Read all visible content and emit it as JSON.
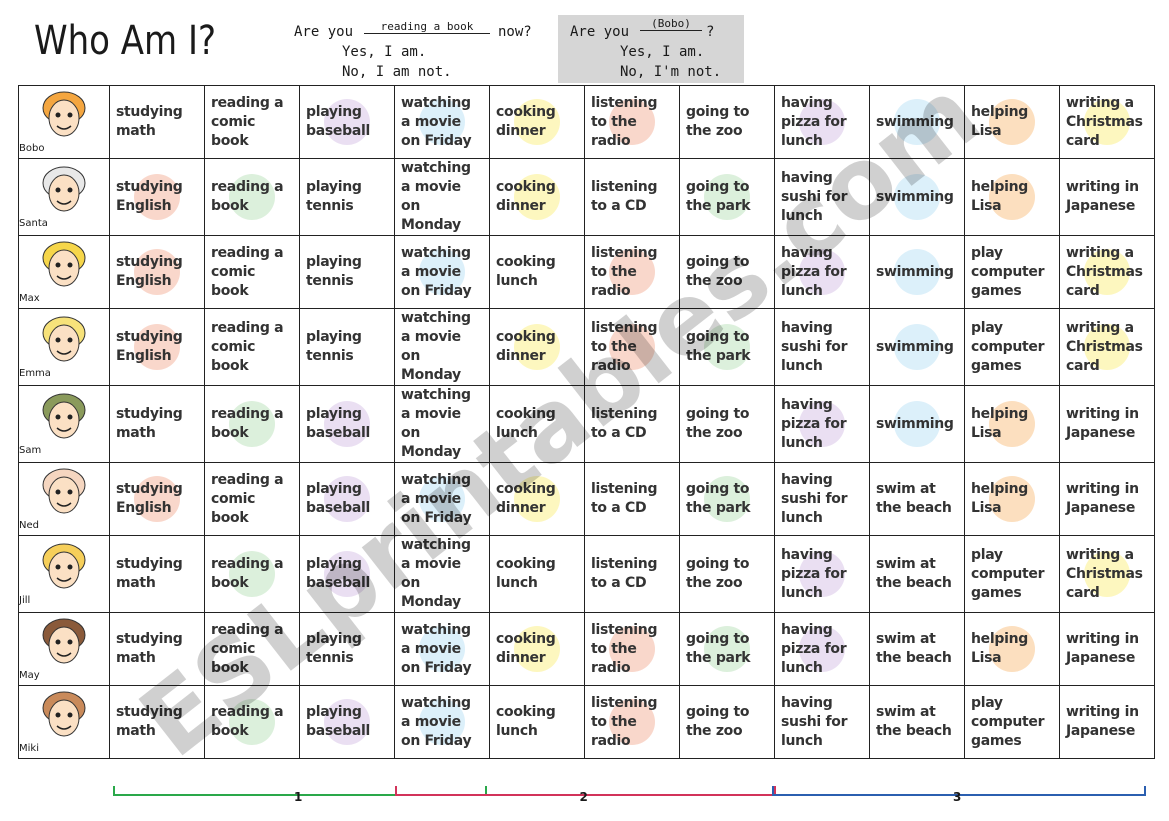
{
  "title": "Who Am I?",
  "example1": {
    "q_prefix": "Are you",
    "q_blank": "reading a book",
    "q_suffix": "now?",
    "yes": "Yes, I am.",
    "no": "No, I am not."
  },
  "example2": {
    "q_prefix": "Are you",
    "q_blank": "(Bobo)",
    "q_suffix": "?",
    "yes": "Yes, I am.",
    "no": "No, I'm not."
  },
  "colors": {
    "red": "#f4b6a0",
    "green": "#bfe3bf",
    "purple": "#d8c4e8",
    "blue": "#bfe3f5",
    "yellow": "#fbf18a",
    "orange": "#f9c48a"
  },
  "rows": [
    {
      "name": "Bobo",
      "cells": [
        {
          "t": "studying math",
          "c": ""
        },
        {
          "t": "reading a comic book",
          "c": ""
        },
        {
          "t": "playing baseball",
          "c": "purple"
        },
        {
          "t": "watching a movie on Friday",
          "c": "blue"
        },
        {
          "t": "cooking dinner",
          "c": "yellow"
        },
        {
          "t": "listening to the radio",
          "c": "red"
        },
        {
          "t": "going to the zoo",
          "c": ""
        },
        {
          "t": "having pizza for lunch",
          "c": "purple"
        },
        {
          "t": "swimming",
          "c": "blue"
        },
        {
          "t": "helping Lisa",
          "c": "orange"
        },
        {
          "t": "writing a Christmas card",
          "c": "yellow"
        }
      ]
    },
    {
      "name": "Santa",
      "cells": [
        {
          "t": "studying English",
          "c": "red"
        },
        {
          "t": "reading a book",
          "c": "green"
        },
        {
          "t": "playing tennis",
          "c": ""
        },
        {
          "t": "watching a movie on Monday",
          "c": ""
        },
        {
          "t": "cooking dinner",
          "c": "yellow"
        },
        {
          "t": "listening to a CD",
          "c": ""
        },
        {
          "t": "going to the park",
          "c": "green"
        },
        {
          "t": "having sushi for lunch",
          "c": ""
        },
        {
          "t": "swimming",
          "c": "blue"
        },
        {
          "t": "helping Lisa",
          "c": "orange"
        },
        {
          "t": "writing in Japanese",
          "c": ""
        }
      ]
    },
    {
      "name": "Max",
      "cells": [
        {
          "t": "studying English",
          "c": "red"
        },
        {
          "t": "reading a comic book",
          "c": ""
        },
        {
          "t": "playing tennis",
          "c": ""
        },
        {
          "t": "watching a movie on Friday",
          "c": "blue"
        },
        {
          "t": "cooking lunch",
          "c": ""
        },
        {
          "t": "listening to the radio",
          "c": "red"
        },
        {
          "t": "going to the zoo",
          "c": ""
        },
        {
          "t": "having pizza for lunch",
          "c": "purple"
        },
        {
          "t": "swimming",
          "c": "blue"
        },
        {
          "t": "play computer games",
          "c": ""
        },
        {
          "t": "writing a Christmas card",
          "c": "yellow"
        }
      ]
    },
    {
      "name": "Emma",
      "cells": [
        {
          "t": "studying English",
          "c": "red"
        },
        {
          "t": "reading a comic book",
          "c": ""
        },
        {
          "t": "playing tennis",
          "c": ""
        },
        {
          "t": "watching a movie on Monday",
          "c": ""
        },
        {
          "t": "cooking dinner",
          "c": "yellow"
        },
        {
          "t": "listening to the radio",
          "c": "red"
        },
        {
          "t": "going to the park",
          "c": "green"
        },
        {
          "t": "having sushi for lunch",
          "c": ""
        },
        {
          "t": "swimming",
          "c": "blue"
        },
        {
          "t": "play computer games",
          "c": ""
        },
        {
          "t": "writing a Christmas card",
          "c": "yellow"
        }
      ]
    },
    {
      "name": "Sam",
      "cells": [
        {
          "t": "studying math",
          "c": ""
        },
        {
          "t": "reading a book",
          "c": "green"
        },
        {
          "t": "playing baseball",
          "c": "purple"
        },
        {
          "t": "watching a movie on Monday",
          "c": ""
        },
        {
          "t": "cooking lunch",
          "c": ""
        },
        {
          "t": "listening to a CD",
          "c": ""
        },
        {
          "t": "going to the zoo",
          "c": ""
        },
        {
          "t": "having pizza for lunch",
          "c": "purple"
        },
        {
          "t": "swimming",
          "c": "blue"
        },
        {
          "t": "helping Lisa",
          "c": "orange"
        },
        {
          "t": "writing in Japanese",
          "c": ""
        }
      ]
    },
    {
      "name": "Ned",
      "cells": [
        {
          "t": "studying English",
          "c": "red"
        },
        {
          "t": "reading a comic book",
          "c": ""
        },
        {
          "t": "playing baseball",
          "c": "purple"
        },
        {
          "t": "watching a movie on Friday",
          "c": "blue"
        },
        {
          "t": "cooking dinner",
          "c": "yellow"
        },
        {
          "t": "listening to a CD",
          "c": ""
        },
        {
          "t": "going to the park",
          "c": "green"
        },
        {
          "t": "having sushi for lunch",
          "c": ""
        },
        {
          "t": "swim at the beach",
          "c": ""
        },
        {
          "t": "helping Lisa",
          "c": "orange"
        },
        {
          "t": "writing in Japanese",
          "c": ""
        }
      ]
    },
    {
      "name": "Jill",
      "cells": [
        {
          "t": "studying math",
          "c": ""
        },
        {
          "t": "reading a book",
          "c": "green"
        },
        {
          "t": "playing baseball",
          "c": "purple"
        },
        {
          "t": "watching a movie on Monday",
          "c": ""
        },
        {
          "t": "cooking lunch",
          "c": ""
        },
        {
          "t": "listening to a CD",
          "c": ""
        },
        {
          "t": "going to the zoo",
          "c": ""
        },
        {
          "t": "having pizza for lunch",
          "c": "purple"
        },
        {
          "t": "swim at the beach",
          "c": ""
        },
        {
          "t": "play computer games",
          "c": ""
        },
        {
          "t": "writing a Christmas card",
          "c": "yellow"
        }
      ]
    },
    {
      "name": "May",
      "cells": [
        {
          "t": "studying math",
          "c": ""
        },
        {
          "t": "reading a comic book",
          "c": ""
        },
        {
          "t": "playing tennis",
          "c": ""
        },
        {
          "t": "watching a movie on Friday",
          "c": "blue"
        },
        {
          "t": "cooking dinner",
          "c": "yellow"
        },
        {
          "t": "listening to the radio",
          "c": "red"
        },
        {
          "t": "going to the park",
          "c": "green"
        },
        {
          "t": "having pizza for lunch",
          "c": "purple"
        },
        {
          "t": "swim at the beach",
          "c": ""
        },
        {
          "t": "helping Lisa",
          "c": "orange"
        },
        {
          "t": "writing in Japanese",
          "c": ""
        }
      ]
    },
    {
      "name": "Miki",
      "cells": [
        {
          "t": "studying math",
          "c": ""
        },
        {
          "t": "reading a book",
          "c": "green"
        },
        {
          "t": "playing baseball",
          "c": "purple"
        },
        {
          "t": "watching a movie on Friday",
          "c": "blue"
        },
        {
          "t": "cooking lunch",
          "c": ""
        },
        {
          "t": "listening to the radio",
          "c": "red"
        },
        {
          "t": "going to the zoo",
          "c": ""
        },
        {
          "t": "having sushi for lunch",
          "c": ""
        },
        {
          "t": "swim at the beach",
          "c": ""
        },
        {
          "t": "play computer games",
          "c": ""
        },
        {
          "t": "writing in Japanese",
          "c": ""
        }
      ]
    }
  ],
  "groups": [
    {
      "label": "1",
      "color": "#2aa84a"
    },
    {
      "label": "2",
      "color": "#d2335a"
    },
    {
      "label": "3",
      "color": "#2b5fb0"
    }
  ],
  "watermark": "ESLprintables.com"
}
